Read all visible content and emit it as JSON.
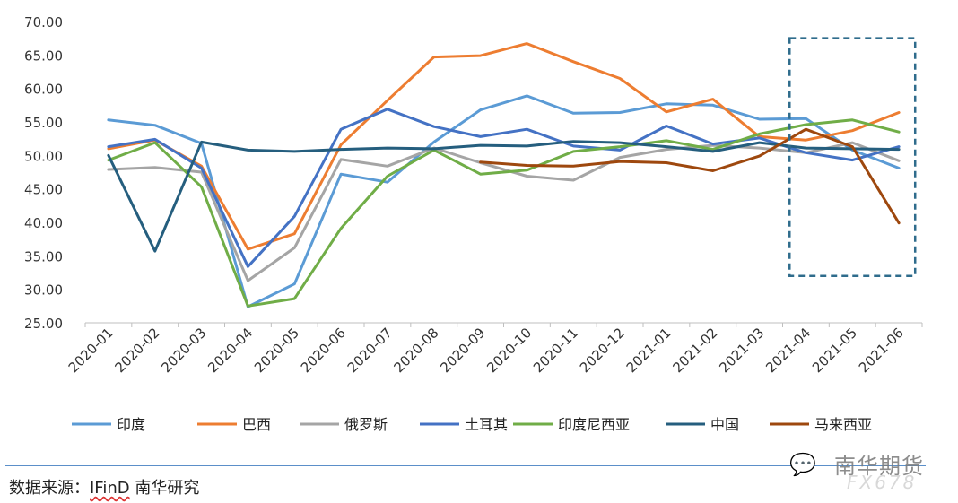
{
  "chart_data": {
    "type": "line",
    "categories": [
      "2020-01",
      "2020-02",
      "2020-03",
      "2020-04",
      "2020-05",
      "2020-06",
      "2020-07",
      "2020-08",
      "2020-09",
      "2020-10",
      "2020-11",
      "2020-12",
      "2021-01",
      "2021-02",
      "2021-03",
      "2021-04",
      "2021-05",
      "2021-06"
    ],
    "ylim": [
      25,
      70
    ],
    "yticks": [
      "25.00",
      "30.00",
      "35.00",
      "40.00",
      "45.00",
      "50.00",
      "55.00",
      "60.00",
      "65.00",
      "70.00"
    ],
    "grid": false,
    "legend_position": "bottom",
    "highlight_box": {
      "from_category": "2021-04",
      "to_category": "2021-06",
      "y_range": [
        32,
        67.5
      ],
      "style": "dashed",
      "color": "#2f6c8c"
    },
    "series": [
      {
        "name": "印度",
        "color": "#5b9bd5",
        "values": [
          55.3,
          54.5,
          51.8,
          27.4,
          30.8,
          47.2,
          46.0,
          52.0,
          56.8,
          58.9,
          56.3,
          56.4,
          57.7,
          57.5,
          55.4,
          55.5,
          50.8,
          48.1
        ]
      },
      {
        "name": "巴西",
        "color": "#ed7d31",
        "values": [
          51.0,
          52.3,
          48.4,
          36.0,
          38.3,
          51.6,
          58.2,
          64.7,
          64.9,
          66.7,
          64.0,
          61.5,
          56.5,
          58.4,
          52.8,
          52.3,
          53.7,
          56.4
        ]
      },
      {
        "name": "俄罗斯",
        "color": "#a5a5a5",
        "values": [
          47.9,
          48.2,
          47.5,
          31.3,
          36.2,
          49.4,
          48.4,
          51.1,
          48.9,
          46.9,
          46.3,
          49.7,
          50.9,
          51.5,
          51.1,
          50.4,
          51.9,
          49.2
        ]
      },
      {
        "name": "土耳其",
        "color": "#4472c4",
        "values": [
          51.3,
          52.4,
          48.1,
          33.4,
          40.9,
          53.9,
          56.9,
          54.3,
          52.8,
          53.9,
          51.4,
          50.8,
          54.4,
          51.7,
          52.6,
          50.4,
          49.3,
          51.3
        ]
      },
      {
        "name": "印度尼西亚",
        "color": "#70ad47",
        "values": [
          49.3,
          51.9,
          45.3,
          27.5,
          28.6,
          39.1,
          46.9,
          50.8,
          47.2,
          47.8,
          50.6,
          51.3,
          52.2,
          50.9,
          53.2,
          54.6,
          55.3,
          53.5
        ]
      },
      {
        "name": "中国",
        "color": "#255e7e",
        "values": [
          50.0,
          35.7,
          52.0,
          50.8,
          50.6,
          50.9,
          51.1,
          51.0,
          51.5,
          51.4,
          52.1,
          51.9,
          51.3,
          50.6,
          51.9,
          51.1,
          51.0,
          50.9
        ]
      },
      {
        "name": "马来西亚",
        "color": "#9e480e",
        "values": [
          null,
          null,
          null,
          null,
          null,
          null,
          null,
          null,
          49.0,
          48.5,
          48.4,
          49.1,
          48.9,
          47.7,
          49.9,
          53.9,
          51.3,
          39.9
        ]
      }
    ]
  },
  "footer": {
    "source_prefix": "数据来源：",
    "source_ifind": "IFinD",
    "source_suffix": " 南华研究"
  },
  "watermark": {
    "text": "南华期货",
    "sub": "FX678"
  }
}
